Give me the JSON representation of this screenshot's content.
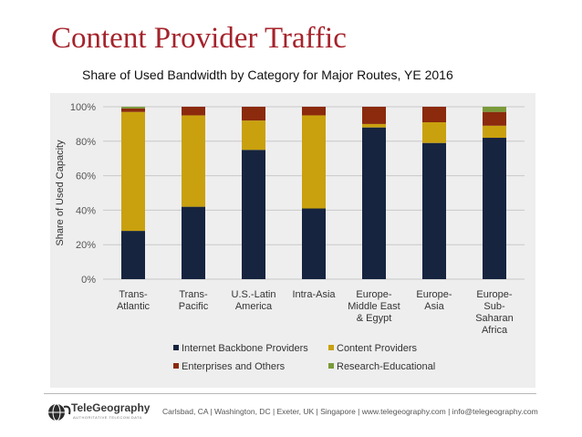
{
  "slide": {
    "title": "Content Provider Traffic",
    "footer": "Carlsbad, CA | Washington, DC | Exeter, UK | Singapore | www.telegeography.com | info@telegeography.com",
    "logo_text": "TeleGeography",
    "logo_subtext": "AUTHORITATIVE TELECOM DATA"
  },
  "chart_data": {
    "type": "bar",
    "stacked": true,
    "title": "Share of Used Bandwidth by Category for Major Routes, YE 2016",
    "ylabel": "Share of Used Capacity",
    "xlabel": "",
    "ylim": [
      0,
      100
    ],
    "yticks": [
      "0%",
      "20%",
      "40%",
      "60%",
      "80%",
      "100%"
    ],
    "categories": [
      [
        "Trans-",
        "Atlantic"
      ],
      [
        "Trans-",
        "Pacific"
      ],
      [
        "U.S.-Latin",
        "America"
      ],
      [
        "Intra-Asia"
      ],
      [
        "Europe-",
        "Middle East",
        "& Egypt"
      ],
      [
        "Europe-",
        "Asia"
      ],
      [
        "Europe-",
        "Sub-",
        "Saharan",
        "Africa"
      ]
    ],
    "series": [
      {
        "name": "Internet Backbone Providers",
        "color": "#16243f",
        "values": [
          28,
          42,
          75,
          41,
          88,
          79,
          82
        ]
      },
      {
        "name": "Content Providers",
        "color": "#c9a10e",
        "values": [
          69,
          53,
          17,
          54,
          2,
          12,
          7
        ]
      },
      {
        "name": "Enterprises and Others",
        "color": "#8b2a0c",
        "values": [
          2,
          5,
          8,
          5,
          10,
          9,
          8
        ]
      },
      {
        "name": "Research-Educational",
        "color": "#7a9a3a",
        "values": [
          1,
          0,
          0,
          0,
          0,
          0,
          3
        ]
      }
    ],
    "grid": true,
    "legend_position": "bottom"
  }
}
